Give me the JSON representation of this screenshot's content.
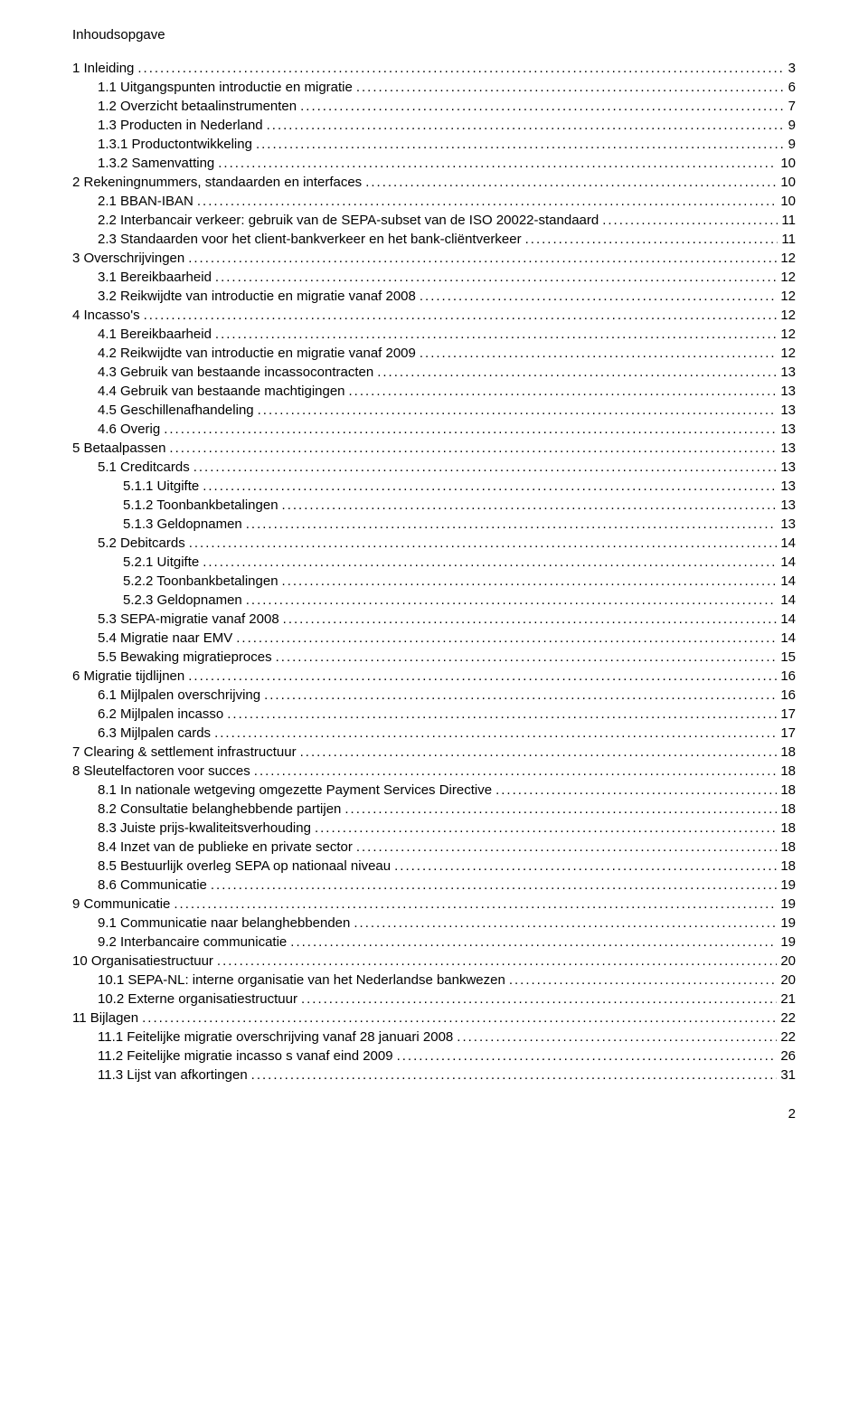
{
  "title": "Inhoudsopgave",
  "page_number": "2",
  "toc": [
    {
      "indent": 0,
      "label": "1   Inleiding",
      "page": "3"
    },
    {
      "indent": 1,
      "label": "1.1   Uitgangspunten introductie en migratie",
      "page": "6"
    },
    {
      "indent": 1,
      "label": "1.2   Overzicht betaalinstrumenten",
      "page": "7"
    },
    {
      "indent": 1,
      "label": "1.3   Producten in Nederland",
      "page": "9"
    },
    {
      "indent": 1,
      "label": "1.3.1   Productontwikkeling",
      "page": "9"
    },
    {
      "indent": 1,
      "label": "1.3.2   Samenvatting",
      "page": "10"
    },
    {
      "indent": 0,
      "label": "2   Rekeningnummers, standaarden en interfaces",
      "page": "10"
    },
    {
      "indent": 1,
      "label": "2.1   BBAN-IBAN",
      "page": "10"
    },
    {
      "indent": 1,
      "label": "2.2   Interbancair verkeer: gebruik van de SEPA-subset van de ISO 20022-standaard",
      "page": "11"
    },
    {
      "indent": 1,
      "label": "2.3   Standaarden voor het client-bankverkeer en het bank-cliëntverkeer",
      "page": "11"
    },
    {
      "indent": 0,
      "label": "3   Overschrijvingen",
      "page": "12"
    },
    {
      "indent": 1,
      "label": "3.1   Bereikbaarheid",
      "page": "12"
    },
    {
      "indent": 1,
      "label": "3.2   Reikwijdte van introductie en migratie vanaf 2008",
      "page": "12"
    },
    {
      "indent": 0,
      "label": "4   Incasso's",
      "page": "12"
    },
    {
      "indent": 1,
      "label": "4.1   Bereikbaarheid",
      "page": "12"
    },
    {
      "indent": 1,
      "label": "4.2   Reikwijdte van introductie en migratie vanaf 2009",
      "page": "12"
    },
    {
      "indent": 1,
      "label": "4.3   Gebruik van bestaande incassocontracten",
      "page": "13"
    },
    {
      "indent": 1,
      "label": "4.4   Gebruik van bestaande machtigingen",
      "page": "13"
    },
    {
      "indent": 1,
      "label": "4.5   Geschillenafhandeling",
      "page": "13"
    },
    {
      "indent": 1,
      "label": "4.6   Overig",
      "page": "13"
    },
    {
      "indent": 0,
      "label": "5   Betaalpassen",
      "page": "13"
    },
    {
      "indent": 1,
      "label": "5.1   Creditcards",
      "page": "13"
    },
    {
      "indent": 2,
      "label": "5.1.1   Uitgifte",
      "page": "13"
    },
    {
      "indent": 2,
      "label": "5.1.2   Toonbankbetalingen",
      "page": "13"
    },
    {
      "indent": 2,
      "label": "5.1.3   Geldopnamen",
      "page": "13"
    },
    {
      "indent": 1,
      "label": "5.2   Debitcards",
      "page": "14"
    },
    {
      "indent": 2,
      "label": "5.2.1   Uitgifte",
      "page": "14"
    },
    {
      "indent": 2,
      "label": "5.2.2   Toonbankbetalingen",
      "page": "14"
    },
    {
      "indent": 2,
      "label": "5.2.3   Geldopnamen",
      "page": "14"
    },
    {
      "indent": 1,
      "label": "5.3   SEPA-migratie vanaf 2008",
      "page": "14"
    },
    {
      "indent": 1,
      "label": "5.4   Migratie naar EMV",
      "page": "14"
    },
    {
      "indent": 1,
      "label": "5.5   Bewaking migratieproces",
      "page": "15"
    },
    {
      "indent": 0,
      "label": "6   Migratie tijdlijnen",
      "page": "16"
    },
    {
      "indent": 1,
      "label": "6.1   Mijlpalen overschrijving",
      "page": "16"
    },
    {
      "indent": 1,
      "label": "6.2   Mijlpalen incasso",
      "page": "17"
    },
    {
      "indent": 1,
      "label": "6.3   Mijlpalen cards",
      "page": "17"
    },
    {
      "indent": 0,
      "label": "7   Clearing & settlement infrastructuur",
      "page": "18"
    },
    {
      "indent": 0,
      "label": "8   Sleutelfactoren voor succes",
      "page": "18"
    },
    {
      "indent": 1,
      "label": "8.1   In nationale wetgeving omgezette Payment Services Directive",
      "page": "18"
    },
    {
      "indent": 1,
      "label": "8.2   Consultatie belanghebbende partijen",
      "page": "18"
    },
    {
      "indent": 1,
      "label": "8.3   Juiste prijs-kwaliteitsverhouding",
      "page": "18"
    },
    {
      "indent": 1,
      "label": "8.4   Inzet van de publieke en private sector",
      "page": "18"
    },
    {
      "indent": 1,
      "label": "8.5   Bestuurlijk overleg SEPA op nationaal niveau",
      "page": "18"
    },
    {
      "indent": 1,
      "label": "8.6   Communicatie",
      "page": "19"
    },
    {
      "indent": 0,
      "label": "9   Communicatie",
      "page": "19"
    },
    {
      "indent": 1,
      "label": "9.1   Communicatie naar belanghebbenden",
      "page": "19"
    },
    {
      "indent": 1,
      "label": "9.2   Interbancaire communicatie",
      "page": "19"
    },
    {
      "indent": 0,
      "label": "10   Organisatiestructuur",
      "page": "20"
    },
    {
      "indent": 1,
      "label": "10.1   SEPA-NL: interne organisatie van het Nederlandse bankwezen",
      "page": "20"
    },
    {
      "indent": 1,
      "label": "10.2   Externe organisatiestructuur",
      "page": "21"
    },
    {
      "indent": 0,
      "label": "11   Bijlagen",
      "page": "22"
    },
    {
      "indent": 1,
      "label": "11.1   Feitelijke migratie overschrijving vanaf 28 januari 2008",
      "page": "22"
    },
    {
      "indent": 1,
      "label": "11.2   Feitelijke migratie incasso s vanaf eind 2009",
      "page": "26"
    },
    {
      "indent": 1,
      "label": "11.3   Lijst van afkortingen",
      "page": "31"
    }
  ]
}
